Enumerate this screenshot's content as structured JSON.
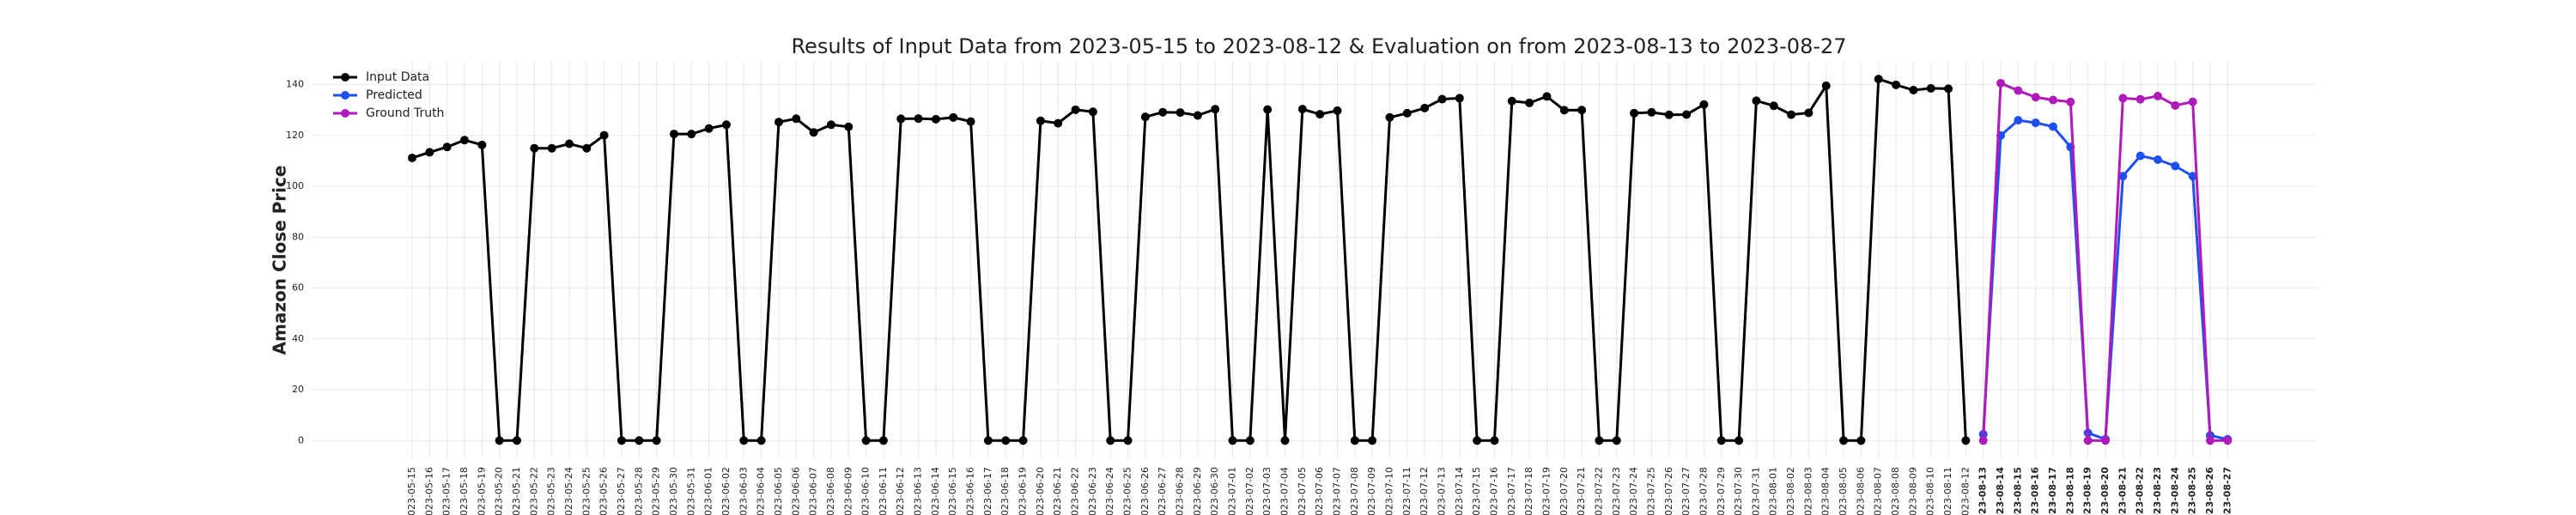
{
  "chart_data": {
    "type": "line",
    "title": "Results of Input Data from 2023-05-15 to 2023-08-12 & Evaluation on from 2023-08-13 to 2023-08-27",
    "ylabel": "Amazon Close Price",
    "x": [
      "2023-05-15",
      "2023-05-16",
      "2023-05-17",
      "2023-05-18",
      "2023-05-19",
      "2023-05-20",
      "2023-05-21",
      "2023-05-22",
      "2023-05-23",
      "2023-05-24",
      "2023-05-25",
      "2023-05-26",
      "2023-05-27",
      "2023-05-28",
      "2023-05-29",
      "2023-05-30",
      "2023-05-31",
      "2023-06-01",
      "2023-06-02",
      "2023-06-03",
      "2023-06-04",
      "2023-06-05",
      "2023-06-06",
      "2023-06-07",
      "2023-06-08",
      "2023-06-09",
      "2023-06-10",
      "2023-06-11",
      "2023-06-12",
      "2023-06-13",
      "2023-06-14",
      "2023-06-15",
      "2023-06-16",
      "2023-06-17",
      "2023-06-18",
      "2023-06-19",
      "2023-06-20",
      "2023-06-21",
      "2023-06-22",
      "2023-06-23",
      "2023-06-24",
      "2023-06-25",
      "2023-06-26",
      "2023-06-27",
      "2023-06-28",
      "2023-06-29",
      "2023-06-30",
      "2023-07-01",
      "2023-07-02",
      "2023-07-03",
      "2023-07-04",
      "2023-07-05",
      "2023-07-06",
      "2023-07-07",
      "2023-07-08",
      "2023-07-09",
      "2023-07-10",
      "2023-07-11",
      "2023-07-12",
      "2023-07-13",
      "2023-07-14",
      "2023-07-15",
      "2023-07-16",
      "2023-07-17",
      "2023-07-18",
      "2023-07-19",
      "2023-07-20",
      "2023-07-21",
      "2023-07-22",
      "2023-07-23",
      "2023-07-24",
      "2023-07-25",
      "2023-07-26",
      "2023-07-27",
      "2023-07-28",
      "2023-07-29",
      "2023-07-30",
      "2023-07-31",
      "2023-08-01",
      "2023-08-02",
      "2023-08-03",
      "2023-08-04",
      "2023-08-05",
      "2023-08-06",
      "2023-08-07",
      "2023-08-08",
      "2023-08-09",
      "2023-08-10",
      "2023-08-11",
      "2023-08-12",
      "2023-08-13",
      "2023-08-14",
      "2023-08-15",
      "2023-08-16",
      "2023-08-17",
      "2023-08-18",
      "2023-08-19",
      "2023-08-20",
      "2023-08-21",
      "2023-08-22",
      "2023-08-23",
      "2023-08-24",
      "2023-08-25",
      "2023-08-26",
      "2023-08-27"
    ],
    "series": [
      {
        "name": "Input Data",
        "color": "#000000",
        "values": [
          111.2,
          113.4,
          115.5,
          118.2,
          116.3,
          0,
          0,
          115.0,
          114.99,
          116.75,
          115.0,
          120.1,
          0,
          0,
          0,
          120.6,
          120.58,
          122.77,
          124.25,
          0,
          0,
          125.3,
          126.61,
          121.23,
          124.25,
          123.43,
          0,
          0,
          126.57,
          126.66,
          126.42,
          127.11,
          125.49,
          0,
          0,
          0,
          125.78,
          124.83,
          130.15,
          129.33,
          0,
          0,
          127.33,
          129.18,
          129.04,
          127.9,
          130.36,
          0,
          0,
          130.22,
          0,
          130.38,
          128.36,
          129.78,
          0,
          0,
          127.13,
          128.78,
          130.8,
          134.3,
          134.68,
          0,
          0,
          133.56,
          132.83,
          135.36,
          129.96,
          130.0,
          0,
          0,
          128.8,
          129.13,
          128.15,
          128.25,
          132.21,
          0,
          0,
          133.68,
          131.69,
          128.21,
          128.91,
          139.57,
          0,
          0,
          142.22,
          139.94,
          137.85,
          138.56,
          138.41,
          0,
          null,
          null,
          null,
          null,
          null,
          null,
          null,
          null,
          null,
          null,
          null,
          null,
          null,
          null,
          null
        ]
      },
      {
        "name": "Predicted",
        "color": "#1f4ff0",
        "values": [
          null,
          null,
          null,
          null,
          null,
          null,
          null,
          null,
          null,
          null,
          null,
          null,
          null,
          null,
          null,
          null,
          null,
          null,
          null,
          null,
          null,
          null,
          null,
          null,
          null,
          null,
          null,
          null,
          null,
          null,
          null,
          null,
          null,
          null,
          null,
          null,
          null,
          null,
          null,
          null,
          null,
          null,
          null,
          null,
          null,
          null,
          null,
          null,
          null,
          null,
          null,
          null,
          null,
          null,
          null,
          null,
          null,
          null,
          null,
          null,
          null,
          null,
          null,
          null,
          null,
          null,
          null,
          null,
          null,
          null,
          null,
          null,
          null,
          null,
          null,
          null,
          null,
          null,
          null,
          null,
          null,
          null,
          null,
          null,
          null,
          null,
          null,
          null,
          null,
          null,
          2.5,
          120,
          126,
          125,
          123.5,
          115.5,
          3,
          0.5,
          104,
          112,
          110.5,
          108,
          104,
          2,
          0.5
        ]
      },
      {
        "name": "Ground Truth",
        "color": "#b01aba",
        "values": [
          null,
          null,
          null,
          null,
          null,
          null,
          null,
          null,
          null,
          null,
          null,
          null,
          null,
          null,
          null,
          null,
          null,
          null,
          null,
          null,
          null,
          null,
          null,
          null,
          null,
          null,
          null,
          null,
          null,
          null,
          null,
          null,
          null,
          null,
          null,
          null,
          null,
          null,
          null,
          null,
          null,
          null,
          null,
          null,
          null,
          null,
          null,
          null,
          null,
          null,
          null,
          null,
          null,
          null,
          null,
          null,
          null,
          null,
          null,
          null,
          null,
          null,
          null,
          null,
          null,
          null,
          null,
          null,
          null,
          null,
          null,
          null,
          null,
          null,
          null,
          null,
          null,
          null,
          null,
          null,
          null,
          null,
          null,
          null,
          null,
          null,
          null,
          null,
          null,
          null,
          0,
          140.57,
          137.67,
          135.07,
          133.98,
          133.22,
          0,
          0,
          134.68,
          134.25,
          135.52,
          131.84,
          133.26,
          0,
          0
        ]
      }
    ],
    "ylim": [
      -7,
      149
    ],
    "yticks": [
      0,
      20,
      40,
      60,
      80,
      100,
      120,
      140
    ],
    "grid": true,
    "legend": "upper left"
  }
}
